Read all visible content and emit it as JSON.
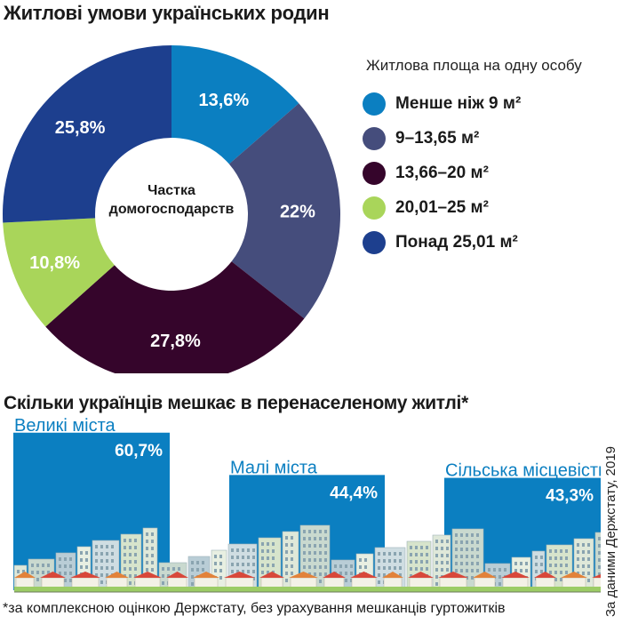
{
  "title": "Житлові умови українських родин",
  "chart_data": [
    {
      "type": "pie",
      "title": "Житлові умови українських родин",
      "center_label": "Частка домогосподарств",
      "legend_title": "Житлова площа на одну особу",
      "slices": [
        {
          "label": "Менше ніж 9 м²",
          "value": 13.6,
          "value_label": "13,6%",
          "color": "#0b7fc1"
        },
        {
          "label": "9–13,65 м²",
          "value": 22,
          "value_label": "22%",
          "color": "#454d7c"
        },
        {
          "label": "13,66–20 м²",
          "value": 27.8,
          "value_label": "27,8%",
          "color": "#35052b"
        },
        {
          "label": "20,01–25 м²",
          "value": 10.8,
          "value_label": "10,8%",
          "color": "#a9d55a"
        },
        {
          "label": "Понад 25,01 м²",
          "value": 25.8,
          "value_label": "25,8%",
          "color": "#1d3f8e"
        }
      ]
    },
    {
      "type": "bar",
      "title": "Скільки українців мешкає в перенаселеному житлі*",
      "categories": [
        "Великі міста",
        "Малі міста",
        "Сільська місцевість"
      ],
      "values": [
        60.7,
        44.4,
        43.3
      ],
      "value_labels": [
        "60,7%",
        "44,4%",
        "43,3%"
      ],
      "unit": "%",
      "color": "#0b7fc1"
    }
  ],
  "source": "За даними Держстату, 2019",
  "footnote": "*за комплексною оцінкою Держстату, без урахування мешканців гуртожитків"
}
